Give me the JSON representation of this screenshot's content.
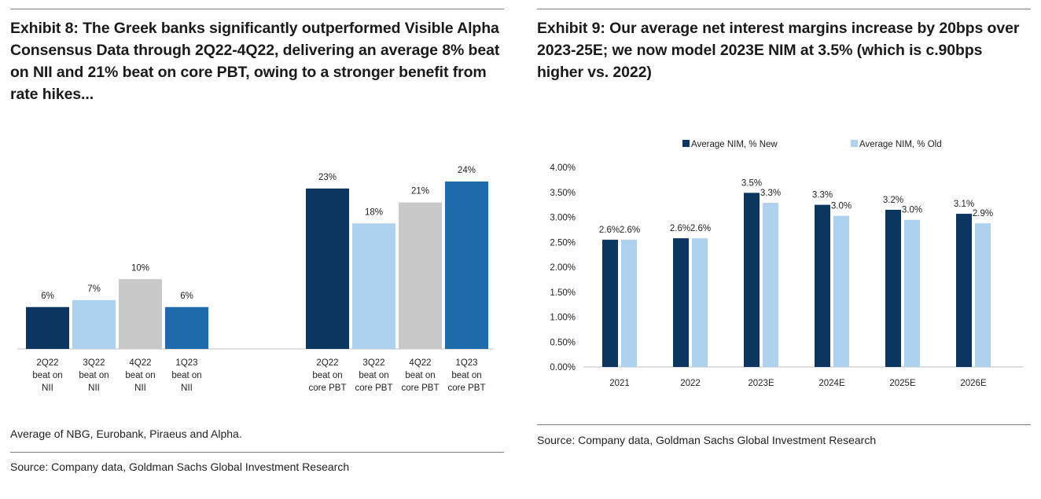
{
  "exhibit8": {
    "title": "Exhibit 8: The Greek banks significantly outperformed Visible Alpha Consensus Data through 2Q22-4Q22, delivering an average 8% beat on NII and 21% beat on core PBT, owing to a stronger benefit from rate hikes...",
    "footnote": "Average of NBG, Eurobank, Piraeus and Alpha.",
    "source": "Source: Company data, Goldman Sachs Global Investment Research"
  },
  "exhibit9": {
    "title": "Exhibit 9: Our average net interest margins increase by 20bps over 2023-25E; we now model 2023E NIM at 3.5% (which is c.90bps higher vs. 2022)",
    "source": "Source: Company data, Goldman Sachs Global Investment Research"
  },
  "colors": {
    "navy": "#0b3660",
    "light_blue": "#aed2ee",
    "grey": "#c8c8c8",
    "mid_blue": "#1e6cab",
    "axis": "#bfbfbf"
  },
  "chart_data": [
    {
      "type": "bar",
      "title": "",
      "groups": [
        {
          "name": "NII",
          "bars": [
            {
              "label": [
                "2Q22",
                "beat on",
                "NII"
              ],
              "value": 6,
              "data_label": "6%",
              "color": "#0b3660"
            },
            {
              "label": [
                "3Q22",
                "beat on",
                "NII"
              ],
              "value": 7,
              "data_label": "7%",
              "color": "#aed2ee"
            },
            {
              "label": [
                "4Q22",
                "beat on",
                "NII"
              ],
              "value": 10,
              "data_label": "10%",
              "color": "#c8c8c8"
            },
            {
              "label": [
                "1Q23",
                "beat on",
                "NII"
              ],
              "value": 6,
              "data_label": "6%",
              "color": "#1e6cab"
            }
          ]
        },
        {
          "name": "core PBT",
          "bars": [
            {
              "label": [
                "2Q22",
                "beat on",
                "core PBT"
              ],
              "value": 23,
              "data_label": "23%",
              "color": "#0b3660"
            },
            {
              "label": [
                "3Q22",
                "beat on",
                "core PBT"
              ],
              "value": 18,
              "data_label": "18%",
              "color": "#aed2ee"
            },
            {
              "label": [
                "4Q22",
                "beat on",
                "core PBT"
              ],
              "value": 21,
              "data_label": "21%",
              "color": "#c8c8c8"
            },
            {
              "label": [
                "1Q23",
                "beat on",
                "core PBT"
              ],
              "value": 24,
              "data_label": "24%",
              "color": "#1e6cab"
            }
          ]
        }
      ],
      "ylim": [
        0,
        24
      ],
      "grid": false
    },
    {
      "type": "bar",
      "title": "",
      "categories": [
        "2021",
        "2022",
        "2023E",
        "2024E",
        "2025E",
        "2026E"
      ],
      "series": [
        {
          "name": "Average NIM, % New",
          "values": [
            2.55,
            2.58,
            3.49,
            3.25,
            3.15,
            3.07
          ],
          "data_labels": [
            "2.6%",
            "2.6%",
            "3.5%",
            "3.3%",
            "3.2%",
            "3.1%"
          ],
          "color": "#0b3660"
        },
        {
          "name": "Average NIM, % Old",
          "values": [
            2.55,
            2.58,
            3.29,
            3.03,
            2.95,
            2.88
          ],
          "data_labels": [
            "2.6%",
            "2.6%",
            "3.3%",
            "3.0%",
            "3.0%",
            "2.9%"
          ],
          "color": "#aed2ee"
        }
      ],
      "yticks": [
        "0.00%",
        "0.50%",
        "1.00%",
        "1.50%",
        "2.00%",
        "2.50%",
        "3.00%",
        "3.50%",
        "4.00%"
      ],
      "ylim": [
        0,
        4.0
      ],
      "xlabel": "",
      "ylabel": "",
      "legend": "top",
      "grid": false
    }
  ]
}
